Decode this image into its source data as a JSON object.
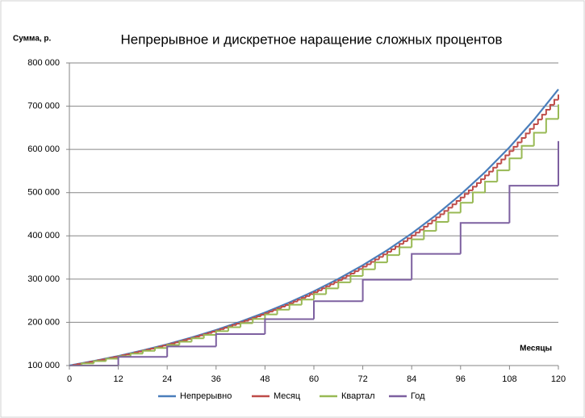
{
  "chart_data": {
    "type": "line",
    "title": "Непрерывное  и дискретное наращение  сложных процентов",
    "y_axis_label": "Сумма, р.",
    "x_axis_label": "Месяцы",
    "xlim": [
      0,
      120
    ],
    "xticks": [
      0,
      12,
      24,
      36,
      48,
      60,
      72,
      84,
      96,
      108,
      120
    ],
    "ylim": [
      100000,
      800000
    ],
    "yticks": [
      {
        "value": 100000,
        "label": "100 000"
      },
      {
        "value": 200000,
        "label": "200 000"
      },
      {
        "value": 300000,
        "label": "300 000"
      },
      {
        "value": 400000,
        "label": "400 000"
      },
      {
        "value": 500000,
        "label": "500 000"
      },
      {
        "value": 600000,
        "label": "600 000"
      },
      {
        "value": 700000,
        "label": "700 000"
      },
      {
        "value": 800000,
        "label": "800 000"
      }
    ],
    "grid": true,
    "legend": "bottom",
    "series": [
      {
        "name": "Непрерывно",
        "color": "#4a7ebb",
        "step": false,
        "x": [
          0,
          6,
          12,
          18,
          24,
          30,
          36,
          42,
          48,
          54,
          60,
          66,
          72,
          78,
          84,
          90,
          96,
          102,
          108,
          114,
          120
        ],
        "values": [
          100000,
          110500,
          122100,
          135000,
          149200,
          164900,
          182200,
          201400,
          222600,
          246000,
          271800,
          300400,
          332000,
          366900,
          405500,
          448200,
          495300,
          547400,
          605000,
          668600,
          738900
        ]
      },
      {
        "name": "Месяц",
        "color": "#be4b48",
        "step": true,
        "x": [
          0,
          1,
          2,
          3,
          4,
          5,
          6,
          7,
          8,
          9,
          10,
          11,
          12,
          13,
          14,
          15,
          16,
          17,
          18,
          19,
          20,
          21,
          22,
          23,
          24,
          25,
          26,
          27,
          28,
          29,
          30,
          31,
          32,
          33,
          34,
          35,
          36,
          37,
          38,
          39,
          40,
          41,
          42,
          43,
          44,
          45,
          46,
          47,
          48,
          49,
          50,
          51,
          52,
          53,
          54,
          55,
          56,
          57,
          58,
          59,
          60,
          61,
          62,
          63,
          64,
          65,
          66,
          67,
          68,
          69,
          70,
          71,
          72,
          73,
          74,
          75,
          76,
          77,
          78,
          79,
          80,
          81,
          82,
          83,
          84,
          85,
          86,
          87,
          88,
          89,
          90,
          91,
          92,
          93,
          94,
          95,
          96,
          97,
          98,
          99,
          100,
          101,
          102,
          103,
          104,
          105,
          106,
          107,
          108,
          109,
          110,
          111,
          112,
          113,
          114,
          115,
          116,
          117,
          118,
          119,
          120
        ],
        "values": [
          100000,
          101700,
          103400,
          105100,
          106800,
          108600,
          110400,
          112300,
          114100,
          116000,
          118000,
          119900,
          121900,
          124000,
          126000,
          128100,
          130300,
          132400,
          134700,
          136900,
          139200,
          141500,
          143900,
          146300,
          148700,
          151200,
          153700,
          156200,
          158900,
          161500,
          164200,
          166900,
          169700,
          172500,
          175400,
          178300,
          181300,
          184300,
          187400,
          190500,
          193700,
          196900,
          200200,
          203500,
          206900,
          210400,
          213900,
          217500,
          221100,
          224800,
          228500,
          232300,
          236200,
          240100,
          244100,
          248200,
          252300,
          256600,
          260800,
          265200,
          269600,
          274100,
          278700,
          283300,
          288000,
          292800,
          297700,
          302700,
          307700,
          312800,
          318100,
          323400,
          328800,
          334200,
          339800,
          345500,
          351200,
          357100,
          363000,
          369100,
          375200,
          381500,
          387800,
          394300,
          400900,
          407600,
          414400,
          421300,
          428300,
          435400,
          442700,
          450100,
          457600,
          465200,
          472900,
          480800,
          488800,
          497000,
          505300,
          513700,
          522200,
          531000,
          539800,
          548800,
          557900,
          567200,
          576700,
          586300,
          596100,
          606000,
          616100,
          626400,
          636800,
          647400,
          658200,
          669200,
          680400,
          691700,
          703200,
          714900,
          726900
        ]
      },
      {
        "name": "Квартал",
        "color": "#98b954",
        "step": true,
        "x": [
          0,
          3,
          6,
          9,
          12,
          15,
          18,
          21,
          24,
          27,
          30,
          33,
          36,
          39,
          42,
          45,
          48,
          51,
          54,
          57,
          60,
          63,
          66,
          69,
          72,
          75,
          78,
          81,
          84,
          87,
          90,
          93,
          96,
          99,
          102,
          105,
          108,
          111,
          114,
          117,
          120
        ],
        "values": [
          100000,
          105000,
          110300,
          115800,
          121600,
          127600,
          134000,
          140700,
          147700,
          155100,
          162900,
          171000,
          179600,
          188600,
          198000,
          207900,
          218300,
          229200,
          240700,
          252700,
          265300,
          278600,
          292500,
          307200,
          322500,
          338600,
          355600,
          373400,
          392000,
          411600,
          432200,
          453800,
          476500,
          500300,
          525300,
          551600,
          579200,
          608100,
          638600,
          670500,
          704000
        ]
      },
      {
        "name": "Год",
        "color": "#7d60a0",
        "step": true,
        "x": [
          0,
          12,
          24,
          36,
          48,
          60,
          72,
          84,
          96,
          108,
          120
        ],
        "values": [
          100000,
          120000,
          144000,
          172800,
          207400,
          248800,
          298600,
          358300,
          430000,
          516000,
          619200
        ]
      }
    ]
  }
}
